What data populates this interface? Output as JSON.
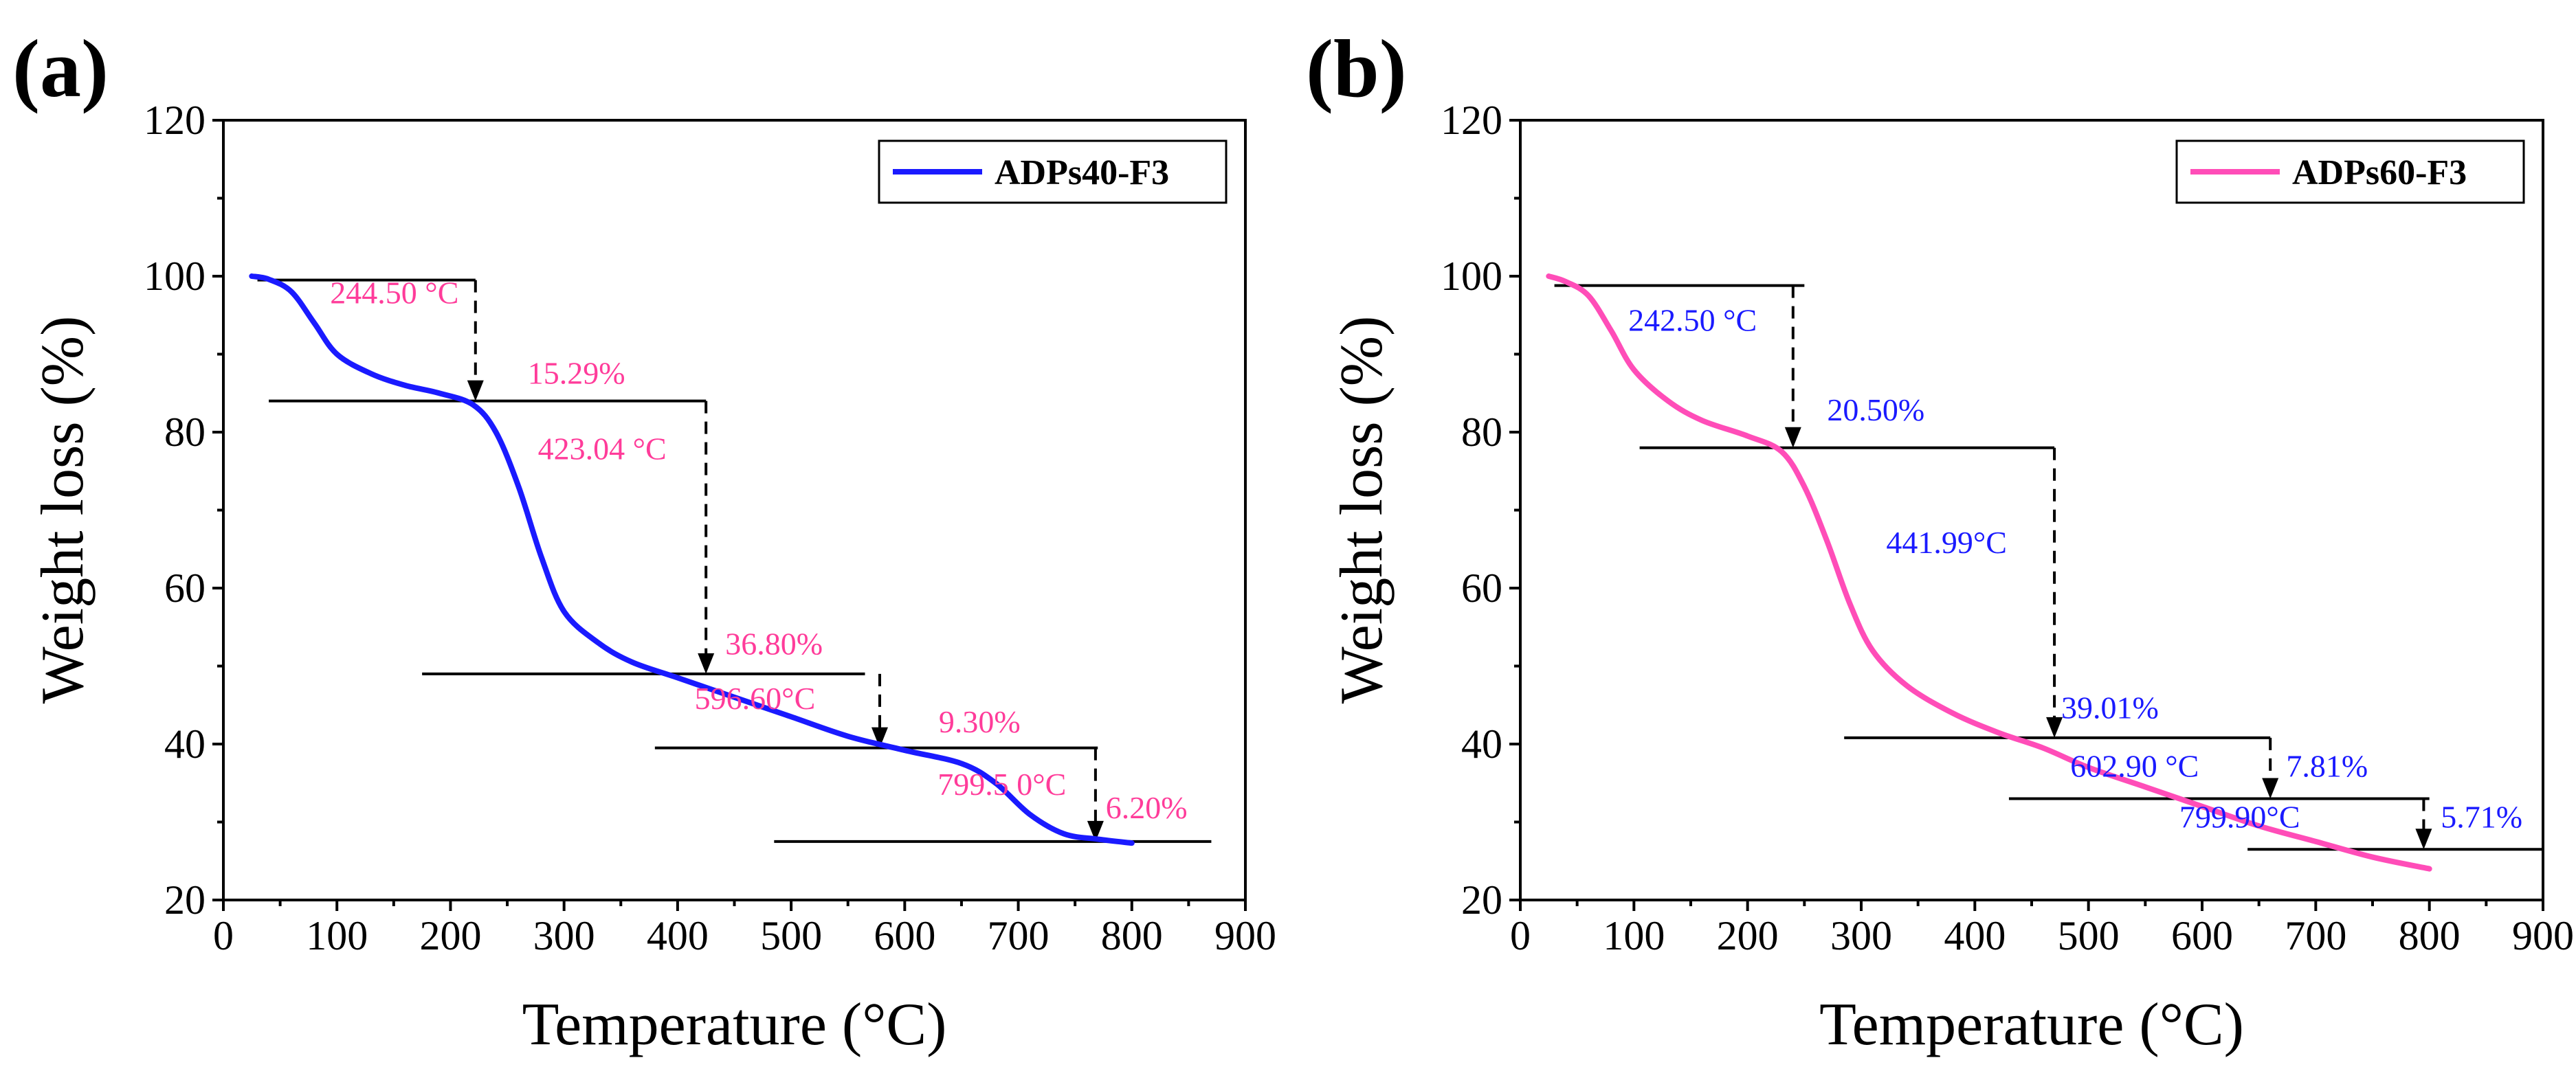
{
  "chart_data": [
    {
      "panel_label": "(a)",
      "type": "line",
      "xlabel": "Temperature (°C)",
      "ylabel": "Weight loss (%)",
      "xlim": [
        0,
        900
      ],
      "ylim": [
        20,
        120
      ],
      "xticks": [
        0,
        100,
        200,
        300,
        400,
        500,
        600,
        700,
        800,
        900
      ],
      "yticks": [
        20,
        40,
        60,
        80,
        100,
        120
      ],
      "grid": false,
      "legend_position": "top-right",
      "series": [
        {
          "name": "ADPs40-F3",
          "color": "#1a1aff",
          "x": [
            25,
            40,
            60,
            80,
            100,
            130,
            160,
            190,
            220,
            240,
            260,
            280,
            300,
            330,
            360,
            400,
            450,
            500,
            550,
            600,
            650,
            680,
            710,
            740,
            770,
            800
          ],
          "y": [
            100,
            99.6,
            98,
            94,
            90,
            87.5,
            86,
            85,
            83.5,
            80,
            73,
            64,
            57,
            53,
            50.5,
            48.5,
            46,
            43.5,
            41,
            39.2,
            37.5,
            35,
            31,
            28.5,
            27.8,
            27.3
          ]
        }
      ],
      "steps": [
        {
          "h_y": 99.5,
          "h_x": [
            30,
            222
          ],
          "d_x": 222,
          "d_y": [
            99.5,
            84
          ]
        },
        {
          "h_y": 84,
          "h_x": [
            40,
            425
          ],
          "d_x": 425,
          "d_y": [
            84,
            49
          ]
        },
        {
          "h_y": 49,
          "h_x": [
            175,
            565
          ],
          "d_x": 578,
          "d_y": [
            49,
            39.5
          ]
        },
        {
          "h_y": 39.5,
          "h_x": [
            380,
            770
          ],
          "d_x": 768,
          "d_y": [
            39.5,
            27.5
          ]
        },
        {
          "h_y": 27.5,
          "h_x": [
            485,
            870
          ]
        }
      ],
      "annotations": [
        {
          "text": "244.50 °C",
          "x": 94,
          "y": 96.5
        },
        {
          "text": "15.29%",
          "x": 268,
          "y": 86.2
        },
        {
          "text": "423.04 °C",
          "x": 277,
          "y": 76.5
        },
        {
          "text": "36.80%",
          "x": 442,
          "y": 51.5
        },
        {
          "text": "596.60°C",
          "x": 415,
          "y": 44.5
        },
        {
          "text": "9.30%",
          "x": 630,
          "y": 41.5
        },
        {
          "text": "799.5 0°C",
          "x": 629,
          "y": 33.5
        },
        {
          "text": "6.20%",
          "x": 777,
          "y": 30.5
        }
      ],
      "annotation_color": "#ff3c9a"
    },
    {
      "panel_label": "(b)",
      "type": "line",
      "xlabel": "Temperature (°C)",
      "ylabel": "Weight loss (%)",
      "xlim": [
        0,
        900
      ],
      "ylim": [
        20,
        120
      ],
      "xticks": [
        0,
        100,
        200,
        300,
        400,
        500,
        600,
        700,
        800,
        900
      ],
      "yticks": [
        20,
        40,
        60,
        80,
        100,
        120
      ],
      "grid": false,
      "legend_position": "top-right",
      "series": [
        {
          "name": "ADPs60-F3",
          "color": "#ff4db8",
          "x": [
            25,
            40,
            60,
            80,
            100,
            130,
            160,
            200,
            230,
            250,
            270,
            290,
            310,
            340,
            380,
            420,
            460,
            500,
            550,
            600,
            650,
            700,
            750,
            800
          ],
          "y": [
            100,
            99.3,
            97.5,
            93,
            88,
            84,
            81.5,
            79.5,
            77.5,
            73,
            66,
            58,
            52,
            47.5,
            44,
            41.5,
            39.5,
            37,
            34.5,
            32,
            29.5,
            27.5,
            25.5,
            24
          ]
        }
      ],
      "steps": [
        {
          "h_y": 98.8,
          "h_x": [
            30,
            250
          ],
          "d_x": 240,
          "d_y": [
            98.8,
            78
          ]
        },
        {
          "h_y": 78,
          "h_x": [
            105,
            470
          ],
          "d_x": 470,
          "d_y": [
            78,
            40.8
          ]
        },
        {
          "h_y": 40.8,
          "h_x": [
            285,
            660
          ],
          "d_x": 660,
          "d_y": [
            40.8,
            33
          ]
        },
        {
          "h_y": 33,
          "h_x": [
            430,
            800
          ],
          "d_x": 795,
          "d_y": [
            33,
            26.5
          ]
        },
        {
          "h_y": 26.5,
          "h_x": [
            640,
            900
          ]
        }
      ],
      "annotations": [
        {
          "text": "242.50 °C",
          "x": 95,
          "y": 93
        },
        {
          "text": "20.50%",
          "x": 270,
          "y": 81.5
        },
        {
          "text": "441.99°C",
          "x": 322,
          "y": 64.5
        },
        {
          "text": "39.01%",
          "x": 476,
          "y": 43.3
        },
        {
          "text": "602.90 °C",
          "x": 484,
          "y": 35.8
        },
        {
          "text": "7.81%",
          "x": 674,
          "y": 35.8
        },
        {
          "text": "799.90°C",
          "x": 580,
          "y": 29.3
        },
        {
          "text": "5.71%",
          "x": 810,
          "y": 29.3
        }
      ],
      "annotation_color": "#1a1aff"
    }
  ]
}
